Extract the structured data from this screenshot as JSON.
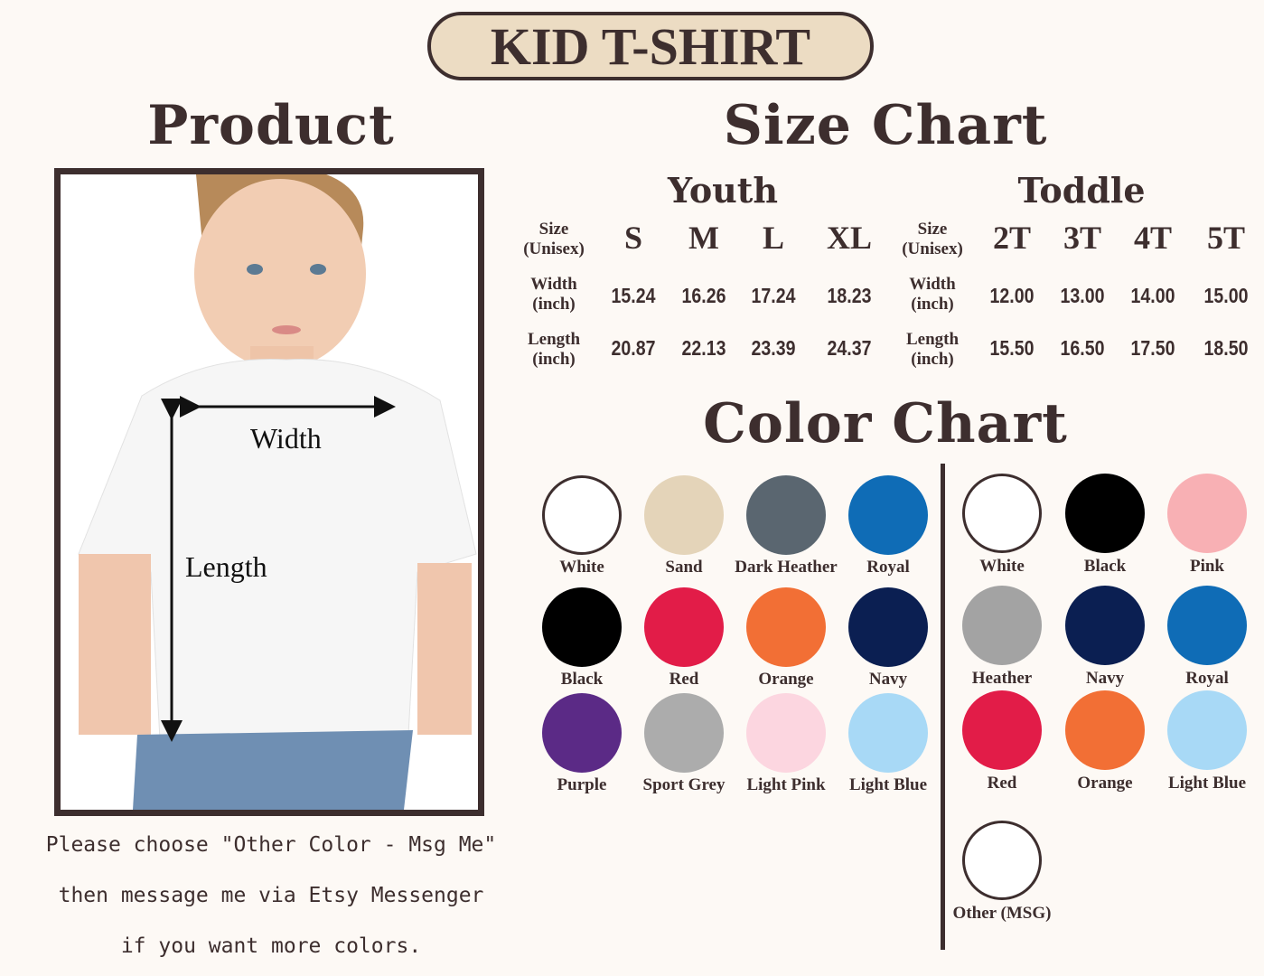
{
  "title": "KID T-SHIRT",
  "product": {
    "heading": "Product",
    "width_label": "Width",
    "length_label": "Length",
    "note_lines": [
      "Please choose \"Other Color - Msg Me\"",
      "then message me via Etsy Messenger",
      "if you want more colors."
    ]
  },
  "size_chart": {
    "heading": "Size Chart",
    "youth": {
      "heading": "Youth",
      "row_labels": [
        [
          "Size",
          "(Unisex)"
        ],
        [
          "Width",
          "(inch)"
        ],
        [
          "Length",
          "(inch)"
        ]
      ],
      "sizes": [
        "S",
        "M",
        "L",
        "XL"
      ],
      "width": [
        "15.24",
        "16.26",
        "17.24",
        "18.23"
      ],
      "length": [
        "20.87",
        "22.13",
        "23.39",
        "24.37"
      ]
    },
    "toddle": {
      "heading": "Toddle",
      "row_labels": [
        [
          "Size",
          "(Unisex)"
        ],
        [
          "Width",
          "(inch)"
        ],
        [
          "Length",
          "(inch)"
        ]
      ],
      "sizes": [
        "2T",
        "3T",
        "4T",
        "5T"
      ],
      "width": [
        "12.00",
        "13.00",
        "14.00",
        "15.00"
      ],
      "length": [
        "15.50",
        "16.50",
        "17.50",
        "18.50"
      ]
    }
  },
  "color_chart": {
    "heading": "Color Chart",
    "youth": [
      {
        "name": "White",
        "color": "#ffffff"
      },
      {
        "name": "Sand",
        "color": "#e4d4b9"
      },
      {
        "name": "Dark Heather",
        "color": "#5a6670"
      },
      {
        "name": "Royal",
        "color": "#0f6cb6"
      },
      {
        "name": "Black",
        "color": "#000000"
      },
      {
        "name": "Red",
        "color": "#e21c48"
      },
      {
        "name": "Orange",
        "color": "#f26f35"
      },
      {
        "name": "Navy",
        "color": "#0b1f52"
      },
      {
        "name": "Purple",
        "color": "#5b2a86"
      },
      {
        "name": "Sport Grey",
        "color": "#acacac"
      },
      {
        "name": "Light Pink",
        "color": "#fcd6e0"
      },
      {
        "name": "Light Blue",
        "color": "#a8d9f6"
      }
    ],
    "toddle": [
      {
        "name": "White",
        "color": "#ffffff"
      },
      {
        "name": "Black",
        "color": "#000000"
      },
      {
        "name": "Pink",
        "color": "#f8b0b4"
      },
      {
        "name": "Heather",
        "color": "#a3a3a3"
      },
      {
        "name": "Navy",
        "color": "#0b1f52"
      },
      {
        "name": "Royal",
        "color": "#0f6cb6"
      },
      {
        "name": "Red",
        "color": "#e21c48"
      },
      {
        "name": "Orange",
        "color": "#f26f35"
      },
      {
        "name": "Light Blue",
        "color": "#a8d9f6"
      },
      {
        "name": "Other (MSG)",
        "color": "#ffffff"
      }
    ]
  }
}
